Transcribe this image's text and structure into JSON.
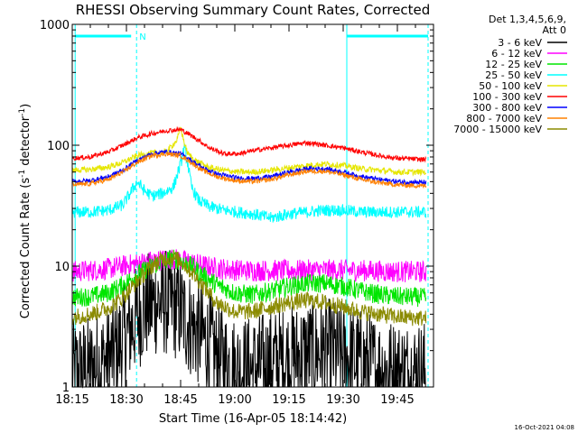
{
  "chart_data": {
    "type": "line",
    "title": "RHESSI Observing Summary Count Rates, Corrected",
    "xlabel": "Start Time (16-Apr-05 18:14:42)",
    "ylabel_parts": [
      "Corrected Count Rate (s",
      "-1",
      " detector",
      "-1",
      ")"
    ],
    "y_scale": "log",
    "ylim": [
      1,
      1000
    ],
    "xlim_minutes": [
      0,
      100
    ],
    "x_ticks": [
      {
        "label": "18:15",
        "t": 0
      },
      {
        "label": "18:30",
        "t": 15
      },
      {
        "label": "18:45",
        "t": 30
      },
      {
        "label": "19:00",
        "t": 45
      },
      {
        "label": "19:15",
        "t": 60
      },
      {
        "label": "19:30",
        "t": 75
      },
      {
        "label": "19:45",
        "t": 90
      }
    ],
    "y_ticks": [
      {
        "label": "1",
        "v": 1
      },
      {
        "label": "10",
        "v": 10
      },
      {
        "label": "100",
        "v": 100
      },
      {
        "label": "1000",
        "v": 1000
      }
    ],
    "legend_header": [
      "Det 1,3,4,5,6,9,",
      "Att 0"
    ],
    "legend_position": "right",
    "annotations": {
      "night_start_min": 0.8,
      "night_end_min": 17.8,
      "night_label": "N",
      "day_start_min": 76.0,
      "day_end_min": 98.5,
      "marker_level": 800
    },
    "series": [
      {
        "name": "3 - 6 keV",
        "color": "#000000",
        "x": [
          0,
          5,
          10,
          13,
          16,
          18,
          20,
          23,
          26,
          28,
          30,
          32,
          34,
          36,
          38,
          40,
          45,
          50,
          55,
          60,
          65,
          70,
          75,
          80,
          85,
          90,
          95,
          98
        ],
        "y": [
          1.3,
          1.4,
          1.7,
          2.2,
          3.0,
          3.8,
          4.5,
          5.0,
          5.0,
          4.8,
          4.2,
          3.5,
          3.0,
          2.6,
          2.2,
          1.8,
          1.4,
          1.4,
          1.6,
          1.7,
          1.9,
          2.0,
          1.8,
          1.6,
          1.4,
          1.3,
          1.3,
          1.3
        ],
        "noise": 0.45
      },
      {
        "name": "6 - 12 keV",
        "color": "#ff00ff",
        "x": [
          0,
          5,
          10,
          14,
          18,
          22,
          25,
          28,
          31,
          34,
          37,
          40,
          45,
          50,
          60,
          70,
          80,
          90,
          98
        ],
        "y": [
          9.0,
          9.2,
          9.5,
          10.0,
          10.5,
          11.0,
          11.3,
          11.5,
          11.0,
          10.5,
          10.0,
          9.6,
          9.3,
          9.2,
          9.2,
          9.3,
          9.2,
          9.0,
          9.0
        ],
        "noise": 0.09
      },
      {
        "name": "12 - 25 keV",
        "color": "#00e600",
        "x": [
          0,
          5,
          10,
          14,
          18,
          22,
          25,
          28,
          30,
          33,
          36,
          40,
          45,
          50,
          55,
          60,
          65,
          70,
          75,
          80,
          85,
          90,
          98
        ],
        "y": [
          5.5,
          5.6,
          6.0,
          7.0,
          8.5,
          10.0,
          11.0,
          11.5,
          11.0,
          10.0,
          8.5,
          7.0,
          6.0,
          5.8,
          6.2,
          6.8,
          7.2,
          7.2,
          6.8,
          6.2,
          5.8,
          5.6,
          5.5
        ],
        "noise": 0.08
      },
      {
        "name": "25 - 50 keV",
        "color": "#00ffff",
        "x": [
          0,
          5,
          10,
          14,
          16,
          18,
          20,
          22,
          25,
          28,
          30,
          31,
          32,
          33,
          35,
          38,
          42,
          46,
          50,
          55,
          60,
          65,
          70,
          75,
          80,
          85,
          90,
          98
        ],
        "y": [
          28,
          28,
          29,
          32,
          40,
          50,
          42,
          38,
          40,
          45,
          70,
          95,
          70,
          45,
          35,
          31,
          29,
          28,
          27,
          25,
          27,
          28,
          29,
          29,
          28,
          28,
          28,
          28
        ],
        "noise": 0.05
      },
      {
        "name": "50 - 100 keV",
        "color": "#e6e600",
        "x": [
          0,
          5,
          10,
          14,
          18,
          22,
          26,
          29,
          30,
          31,
          32,
          34,
          38,
          42,
          46,
          50,
          55,
          60,
          65,
          70,
          75,
          80,
          85,
          90,
          98
        ],
        "y": [
          62,
          63,
          66,
          72,
          82,
          86,
          88,
          110,
          140,
          105,
          85,
          75,
          65,
          62,
          60,
          60,
          62,
          65,
          68,
          70,
          68,
          64,
          62,
          60,
          60
        ],
        "noise": 0.025
      },
      {
        "name": "100 - 300 keV",
        "color": "#ff0000",
        "x": [
          0,
          5,
          10,
          14,
          18,
          22,
          26,
          30,
          32,
          35,
          38,
          42,
          46,
          50,
          55,
          60,
          65,
          70,
          75,
          80,
          85,
          90,
          98
        ],
        "y": [
          78,
          80,
          88,
          100,
          115,
          125,
          132,
          135,
          125,
          110,
          95,
          85,
          85,
          90,
          95,
          100,
          105,
          100,
          95,
          88,
          82,
          78,
          76
        ],
        "noise": 0.02
      },
      {
        "name": "300 - 800 keV",
        "color": "#0000ff",
        "x": [
          0,
          5,
          10,
          14,
          18,
          22,
          26,
          30,
          33,
          36,
          40,
          45,
          50,
          55,
          60,
          65,
          70,
          75,
          80,
          85,
          90,
          98
        ],
        "y": [
          50,
          51,
          55,
          62,
          75,
          85,
          88,
          85,
          75,
          65,
          58,
          54,
          53,
          55,
          60,
          64,
          64,
          60,
          55,
          52,
          50,
          49
        ],
        "noise": 0.02
      },
      {
        "name": "800 - 7000 keV",
        "color": "#ff8000",
        "x": [
          0,
          5,
          10,
          14,
          18,
          22,
          26,
          30,
          33,
          36,
          40,
          45,
          50,
          55,
          60,
          65,
          70,
          75,
          80,
          85,
          90,
          98
        ],
        "y": [
          47,
          48,
          52,
          60,
          72,
          82,
          85,
          82,
          72,
          62,
          55,
          51,
          50,
          52,
          57,
          61,
          61,
          57,
          52,
          49,
          47,
          46
        ],
        "noise": 0.02
      },
      {
        "name": "7000 - 15000 keV",
        "color": "#8b8b00",
        "x": [
          0,
          5,
          10,
          14,
          18,
          22,
          25,
          28,
          30,
          33,
          36,
          40,
          45,
          50,
          55,
          60,
          65,
          70,
          75,
          80,
          85,
          90,
          98
        ],
        "y": [
          3.8,
          4.0,
          4.5,
          5.5,
          7.5,
          10.0,
          11.5,
          11.8,
          11.0,
          9.0,
          7.0,
          5.0,
          4.2,
          4.2,
          4.6,
          5.0,
          5.2,
          5.0,
          4.6,
          4.2,
          4.0,
          3.8,
          3.7
        ],
        "noise": 0.07
      }
    ]
  },
  "timestamp": "16-Oct-2021 04:08"
}
